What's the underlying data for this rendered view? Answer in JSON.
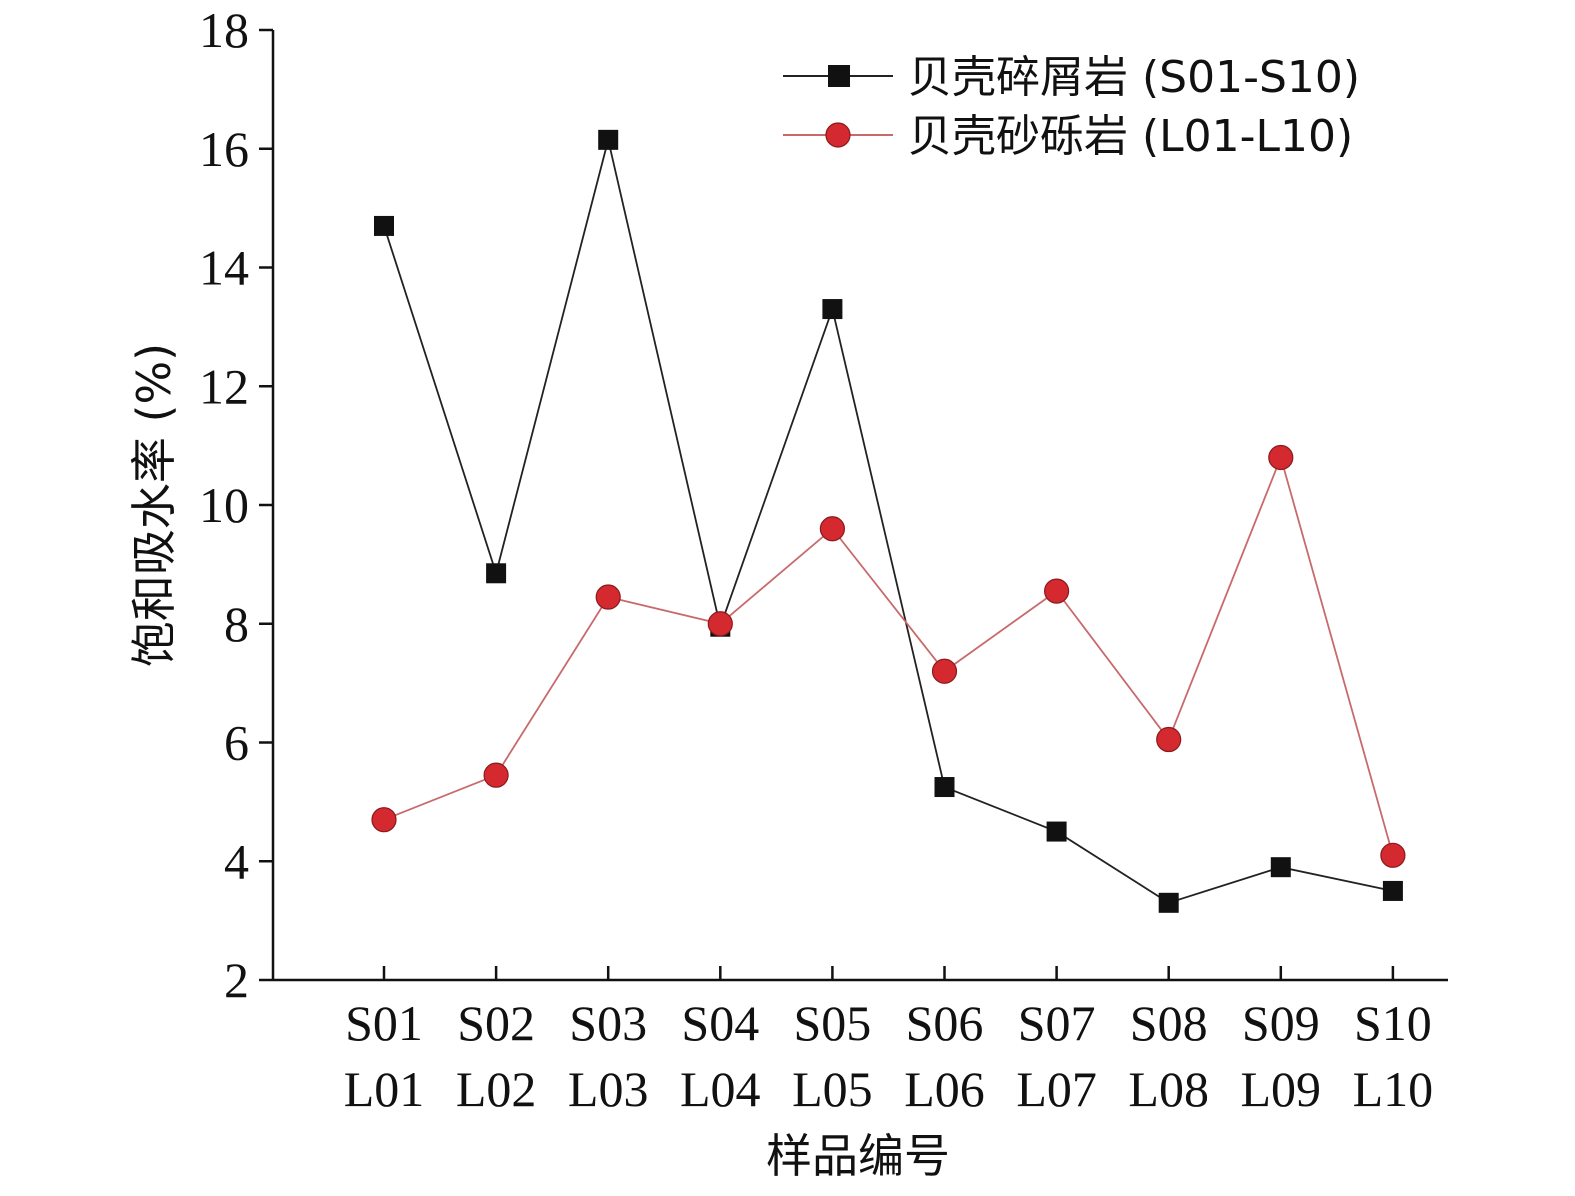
{
  "chart_data": {
    "type": "line",
    "title": "",
    "xlabel": "样品编号",
    "ylabel": "饱和吸水率 (%)",
    "ylim": [
      2,
      18
    ],
    "yticks": [
      2,
      4,
      6,
      8,
      10,
      12,
      14,
      16,
      18
    ],
    "categories_top": [
      "S01",
      "S02",
      "S03",
      "S04",
      "S05",
      "S06",
      "S07",
      "S08",
      "S09",
      "S10"
    ],
    "categories_bottom": [
      "L01",
      "L02",
      "L03",
      "L04",
      "L05",
      "L06",
      "L07",
      "L08",
      "L09",
      "L10"
    ],
    "grid": false,
    "legend_position": "top-right",
    "series": [
      {
        "name": "贝壳碎屑岩 (S01-S10)",
        "color": "#111111",
        "marker": "square",
        "values": [
          14.7,
          8.85,
          16.15,
          7.95,
          13.3,
          5.25,
          4.5,
          3.3,
          3.9,
          3.5
        ]
      },
      {
        "name": "贝壳砂砾岩 (L01-L10)",
        "color": "#d42a2f",
        "marker": "circle",
        "values": [
          4.7,
          5.45,
          8.45,
          8.0,
          9.6,
          7.2,
          8.55,
          6.05,
          10.8,
          4.1
        ]
      }
    ]
  }
}
